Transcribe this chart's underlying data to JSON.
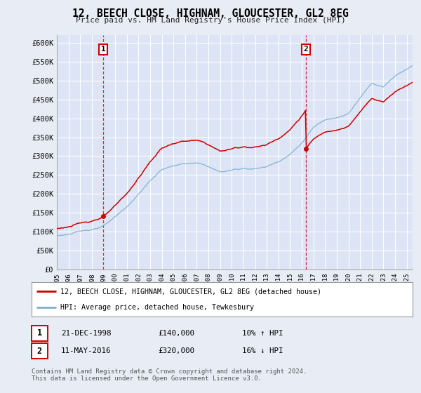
{
  "title": "12, BEECH CLOSE, HIGHNAM, GLOUCESTER, GL2 8EG",
  "subtitle": "Price paid vs. HM Land Registry's House Price Index (HPI)",
  "ylim": [
    0,
    620000
  ],
  "yticks": [
    0,
    50000,
    100000,
    150000,
    200000,
    250000,
    300000,
    350000,
    400000,
    450000,
    500000,
    550000,
    600000
  ],
  "ytick_labels": [
    "£0",
    "£50K",
    "£100K",
    "£150K",
    "£200K",
    "£250K",
    "£300K",
    "£350K",
    "£400K",
    "£450K",
    "£500K",
    "£550K",
    "£600K"
  ],
  "background_color": "#e8edf5",
  "plot_bg_color": "#dce4f5",
  "grid_color": "#ffffff",
  "red_line_color": "#cc0000",
  "blue_line_color": "#7bafd4",
  "sale1_date": 1998.97,
  "sale1_price": 140000,
  "sale2_date": 2016.36,
  "sale2_price": 320000,
  "legend_label_red": "12, BEECH CLOSE, HIGHNAM, GLOUCESTER, GL2 8EG (detached house)",
  "legend_label_blue": "HPI: Average price, detached house, Tewkesbury",
  "table_row1": [
    "1",
    "21-DEC-1998",
    "£140,000",
    "10% ↑ HPI"
  ],
  "table_row2": [
    "2",
    "11-MAY-2016",
    "£320,000",
    "16% ↓ HPI"
  ],
  "footnote": "Contains HM Land Registry data © Crown copyright and database right 2024.\nThis data is licensed under the Open Government Licence v3.0.",
  "xmin": 1995.0,
  "xmax": 2025.5,
  "hpi_key_years": [
    1995,
    1996,
    1997,
    1998,
    1999,
    2000,
    2001,
    2002,
    2003,
    2004,
    2005,
    2006,
    2007,
    2008,
    2009,
    2010,
    2011,
    2012,
    2013,
    2014,
    2015,
    2016,
    2017,
    2018,
    2019,
    2020,
    2021,
    2022,
    2023,
    2024,
    2025.5
  ],
  "hpi_key_prices": [
    88000,
    93000,
    98000,
    105000,
    115000,
    135000,
    160000,
    195000,
    230000,
    260000,
    270000,
    275000,
    275000,
    265000,
    250000,
    255000,
    260000,
    260000,
    265000,
    280000,
    300000,
    330000,
    370000,
    390000,
    400000,
    410000,
    450000,
    490000,
    480000,
    510000,
    540000
  ]
}
